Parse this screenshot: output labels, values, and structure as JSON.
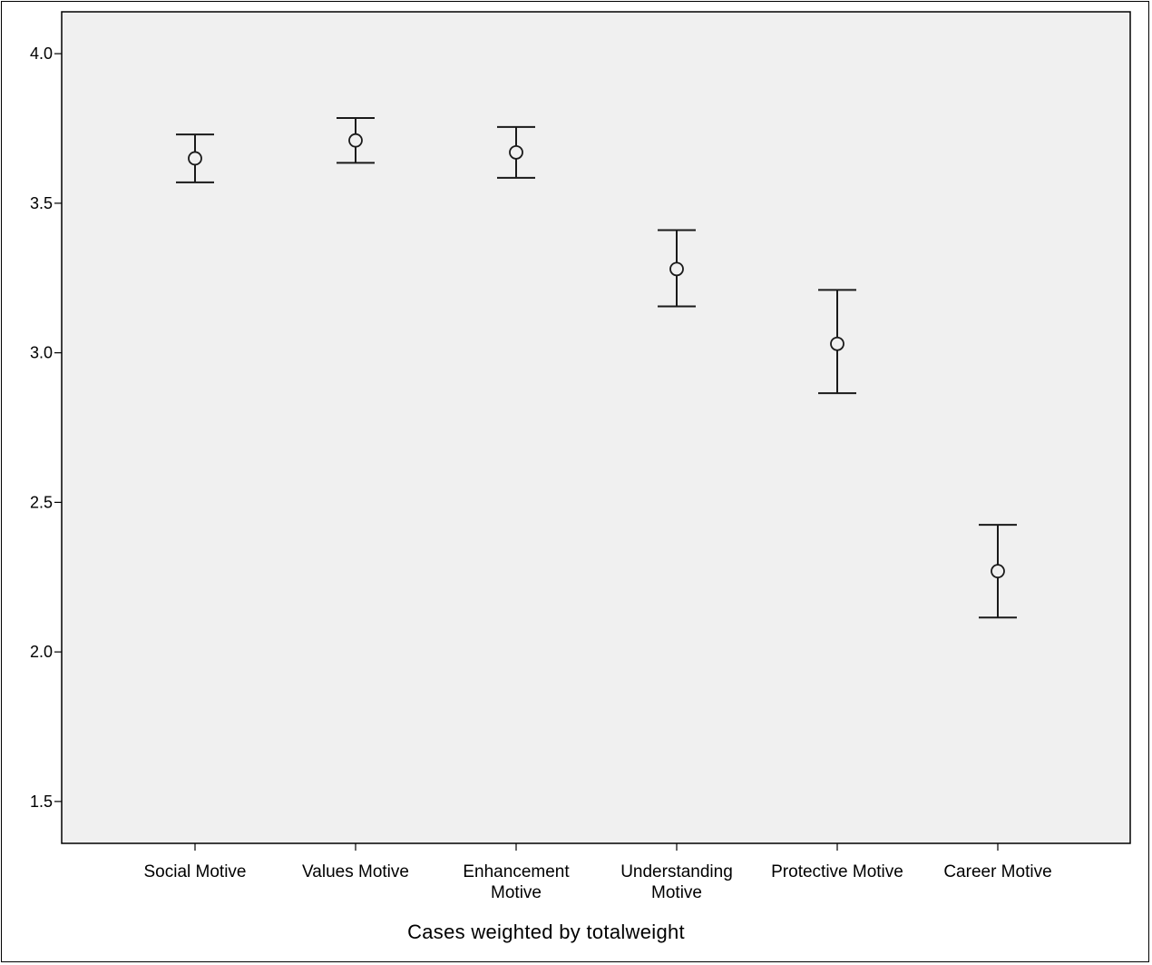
{
  "chart_data": {
    "type": "errorbar",
    "categories": [
      [
        "Social Motive"
      ],
      [
        "Values Motive"
      ],
      [
        "Enhancement",
        "Motive"
      ],
      [
        "Understanding",
        "Motive"
      ],
      [
        "Protective Motive"
      ],
      [
        "Career Motive"
      ]
    ],
    "series": [
      {
        "means": [
          3.65,
          3.71,
          3.67,
          3.28,
          3.03,
          2.27
        ],
        "lower": [
          3.57,
          3.635,
          3.585,
          3.155,
          2.865,
          2.115
        ],
        "upper": [
          3.73,
          3.785,
          3.755,
          3.41,
          3.21,
          2.425
        ]
      }
    ],
    "yticks": [
      "1.5",
      "2.0",
      "2.5",
      "3.0",
      "3.5",
      "4.0"
    ],
    "ylim": [
      1.36,
      4.14
    ],
    "grid": false,
    "footnote": "Cases weighted by totalweight",
    "colors": {
      "plot_background": "#f0f0f0",
      "marks": "#1a1a1a"
    }
  }
}
